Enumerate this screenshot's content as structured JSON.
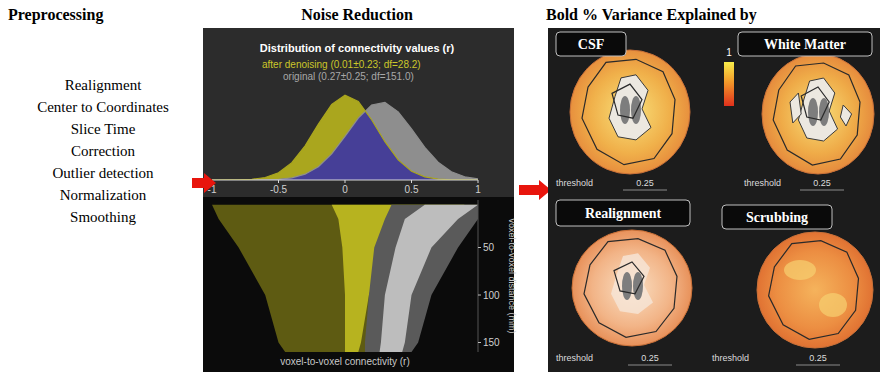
{
  "preprocessing": {
    "title": "Preprocessing",
    "steps": [
      "Realignment",
      "Center to Coordinates",
      "Slice Time",
      "Correction",
      "Outlier detection",
      "Normalization",
      "Smoothing"
    ]
  },
  "noise_reduction": {
    "title": "Noise Reduction"
  },
  "chart_data": [
    {
      "type": "area",
      "title": "Distribution of connectivity values (r)",
      "x": [
        -1,
        -0.9,
        -0.8,
        -0.7,
        -0.6,
        -0.5,
        -0.4,
        -0.3,
        -0.2,
        -0.1,
        0,
        0.1,
        0.2,
        0.3,
        0.4,
        0.5,
        0.6,
        0.7,
        0.8,
        0.9,
        1
      ],
      "series": [
        {
          "name": "original (0.27±0.25; df=151.0)",
          "color": "#8e8e8e",
          "values": [
            0,
            0,
            0,
            0.001,
            0.004,
            0.014,
            0.044,
            0.119,
            0.272,
            0.534,
            0.891,
            1.267,
            1.535,
            1.585,
            1.394,
            1.045,
            0.668,
            0.364,
            0.169,
            0.067,
            0.022
          ]
        },
        {
          "name": "after denoising (0.01±0.23; df=28.2)",
          "color": "#aaa61e",
          "values": [
            0,
            0.001,
            0.004,
            0.015,
            0.051,
            0.148,
            0.354,
            0.699,
            1.143,
            1.547,
            1.734,
            1.606,
            1.233,
            0.783,
            0.412,
            0.179,
            0.065,
            0.019,
            0.005,
            0.001,
            0
          ]
        }
      ],
      "xlim": [
        -1,
        1
      ],
      "xticks": [
        -1,
        -0.5,
        0,
        0.5,
        1
      ],
      "ylim": [
        0,
        1.8
      ],
      "tick_labels": "x",
      "legend": "top"
    },
    {
      "type": "band",
      "x_label": "voxel-to-voxel connectivity (r)",
      "y_label": "voxel-to-voxel distance (mm)",
      "y": [
        5,
        20,
        50,
        100,
        150,
        160
      ],
      "series": [
        {
          "color": "#5e5b12",
          "lower": [
            -1,
            -0.95,
            -0.8,
            -0.6,
            -0.5,
            -0.45
          ],
          "upper": [
            1,
            0.7,
            0.4,
            0.25,
            0.18,
            0.15
          ]
        },
        {
          "color": "#b7b31f",
          "lower": [
            -0.1,
            -0.05,
            -0.02,
            0,
            0,
            0
          ],
          "upper": [
            0.9,
            0.5,
            0.3,
            0.18,
            0.12,
            0.1
          ]
        },
        {
          "color": "#5a5a5a",
          "lower": [
            0.35,
            0.3,
            0.22,
            0.18,
            0.15,
            0.15
          ],
          "upper": [
            1,
            1,
            0.85,
            0.65,
            0.55,
            0.5
          ]
        },
        {
          "color": "#bdbdbd",
          "lower": [
            0.6,
            0.45,
            0.38,
            0.3,
            0.27,
            0.26
          ],
          "upper": [
            1,
            0.85,
            0.65,
            0.5,
            0.45,
            0.43
          ]
        }
      ],
      "xlim": [
        -1,
        1
      ],
      "ylim": [
        0,
        160
      ],
      "yticks": [
        50,
        100,
        150
      ],
      "tick_labels": "y"
    }
  ],
  "variance": {
    "title": "Bold % Variance Explained by",
    "colorbar": {
      "max": 1
    },
    "threshold_label": "threshold",
    "maps": [
      {
        "label": "CSF",
        "threshold": 0.25
      },
      {
        "label": "White Matter",
        "threshold": 0.25
      },
      {
        "label": "Realignment",
        "threshold": 0.25
      },
      {
        "label": "Scrubbing",
        "threshold": 0.25
      }
    ]
  }
}
